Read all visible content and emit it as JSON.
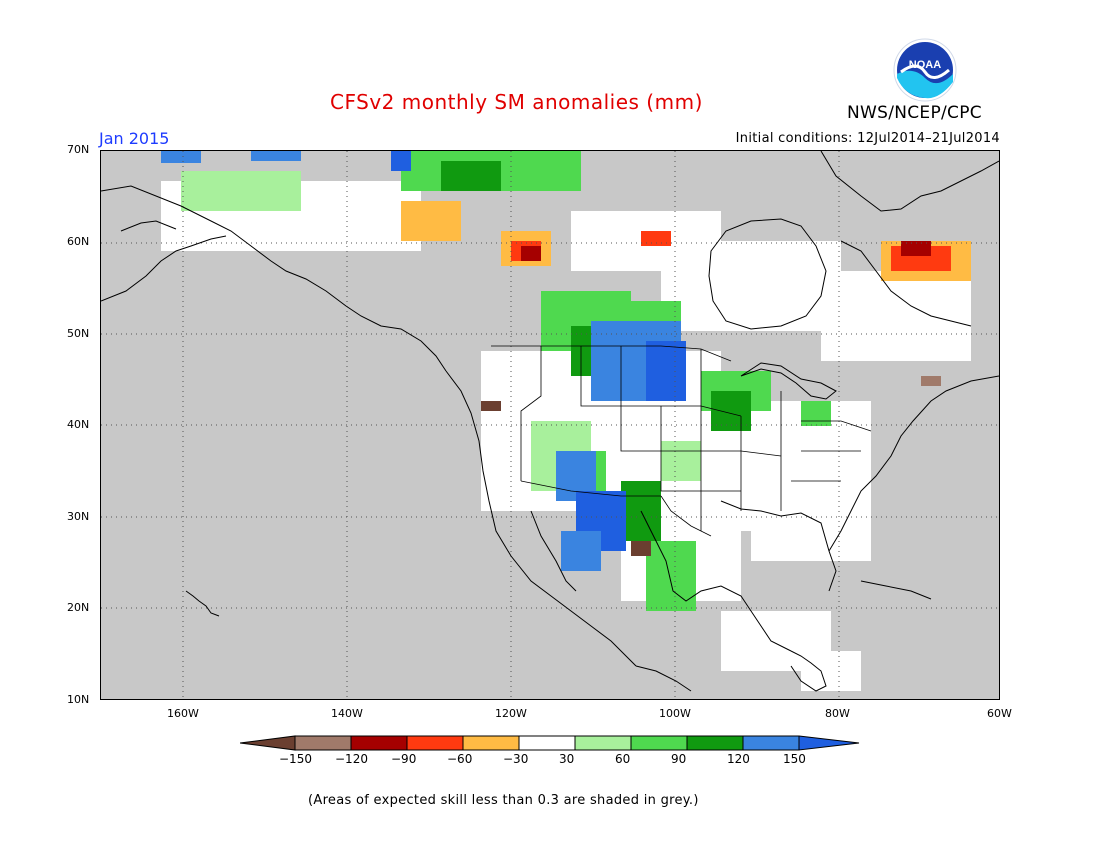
{
  "header": {
    "title": "CFSv2 monthly SM anomalies (mm)",
    "month": "Jan 2015",
    "initial_conditions": "Initial conditions: 12Jul2014–21Jul2014",
    "agency": "NWS/NCEP/CPC",
    "logo_text": "NOAA"
  },
  "axes": {
    "lat_labels": [
      "70N",
      "60N",
      "50N",
      "40N",
      "30N",
      "20N",
      "10N"
    ],
    "lon_labels": [
      "160W",
      "140W",
      "120W",
      "100W",
      "80W",
      "60W"
    ]
  },
  "legend": {
    "labels": [
      "−150",
      "−120",
      "−90",
      "−60",
      "−30",
      "30",
      "60",
      "90",
      "120",
      "150"
    ],
    "colors": [
      "#6b3f30",
      "#a07a6a",
      "#a50000",
      "#ff3a10",
      "#ffbb44",
      "#ffffff",
      "#a8f09c",
      "#4fd94f",
      "#109a10",
      "#3a84e0",
      "#1f5fe0"
    ]
  },
  "footnote": "(Areas of expected skill less than 0.3 are shaded in grey.)",
  "colors": {
    "grey_mask": "#c8c8c8",
    "title": "#e00000",
    "month": "#1e3cff"
  }
}
